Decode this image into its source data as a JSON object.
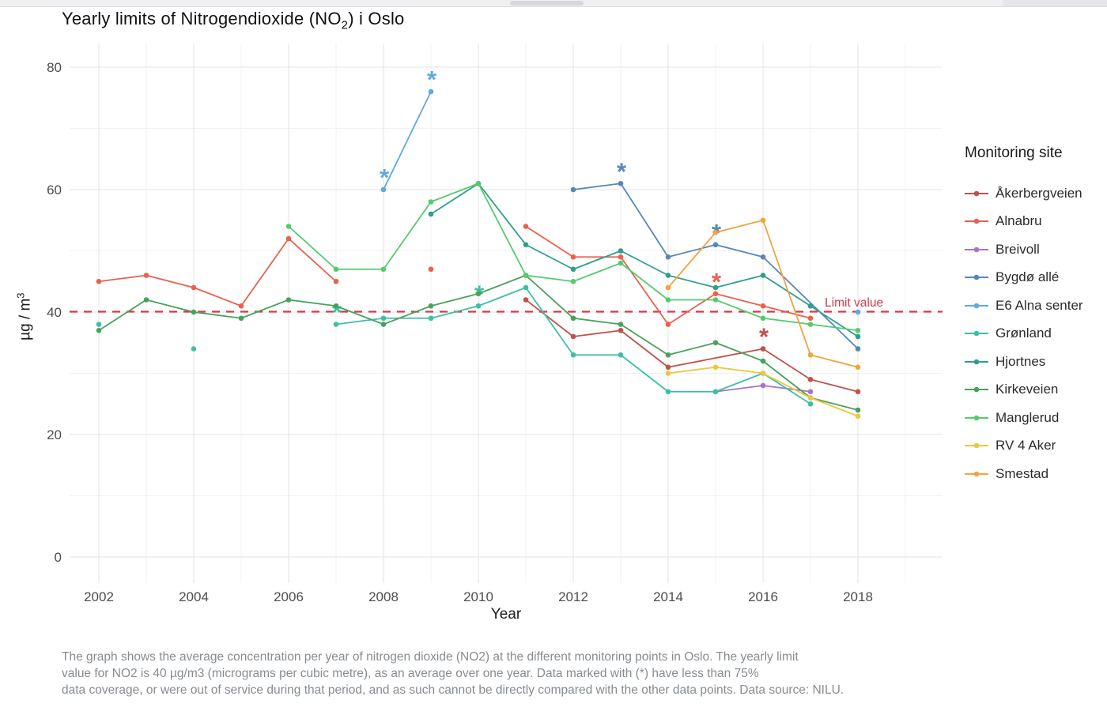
{
  "title": {
    "pre": "Yearly limits of Nitrogendioxide (NO",
    "sub": "2",
    "post": ") i Oslo"
  },
  "caption": {
    "lines": [
      "The graph shows the average concentration per year of nitrogen dioxide (NO2) at the different monitoring points in Oslo. The yearly limit",
      "value for NO2 is 40 µg/m3 (micrograms per cubic metre), as an average over one year. Data marked with (*) have less than 75%",
      "data coverage, or were out of service during that period, and as such cannot be directly compared with the other data points. Data source: NILU."
    ]
  },
  "scrollbar": {
    "present": true
  },
  "chart_data": {
    "type": "line",
    "title": "Yearly limits of Nitrogendioxide (NO2) i Oslo",
    "xlabel": "Year",
    "ylabel_main": "µg / m",
    "ylabel_sup": "3",
    "legend_title": "Monitoring site",
    "x_ticks": [
      2002,
      2004,
      2006,
      2008,
      2010,
      2012,
      2014,
      2016,
      2018
    ],
    "x_minor": [
      2003,
      2005,
      2007,
      2009,
      2011,
      2013,
      2015,
      2017,
      2019
    ],
    "y_ticks": [
      0,
      20,
      40,
      60,
      80
    ],
    "y_minor": [
      10,
      30,
      50,
      70
    ],
    "xlim": [
      2001.4,
      2019.8
    ],
    "ylim": [
      -4.3,
      84
    ],
    "grid": true,
    "legend_position": "right",
    "limit_line": {
      "value": 40,
      "label": "Limit value",
      "color": "#cf3b4c",
      "style": "dashed"
    },
    "asterisk_note": "* = less than 75% data coverage",
    "series": [
      {
        "name": "Åkerbergveien",
        "color": "#c0524c",
        "points": [
          {
            "year": 2011,
            "value": 42
          },
          {
            "year": 2012,
            "value": 36
          },
          {
            "year": 2013,
            "value": 37
          },
          {
            "year": 2014,
            "value": 31
          },
          {
            "year": 2016,
            "value": 34,
            "asterisk": true
          },
          {
            "year": 2017,
            "value": 29
          },
          {
            "year": 2018,
            "value": 27
          }
        ]
      },
      {
        "name": "Alnabru",
        "color": "#e9604f",
        "points": [
          {
            "year": 2002,
            "value": 45
          },
          {
            "year": 2003,
            "value": 46
          },
          {
            "year": 2004,
            "value": 44
          },
          {
            "year": 2005,
            "value": 41
          },
          {
            "year": 2006,
            "value": 52
          },
          {
            "year": 2007,
            "value": 45
          },
          {
            "year": 2009,
            "value": 47,
            "gap": true
          },
          {
            "year": 2011,
            "value": 54,
            "gap": true
          },
          {
            "year": 2012,
            "value": 49
          },
          {
            "year": 2013,
            "value": 49
          },
          {
            "year": 2014,
            "value": 38
          },
          {
            "year": 2015,
            "value": 43,
            "asterisk": true
          },
          {
            "year": 2016,
            "value": 41
          },
          {
            "year": 2017,
            "value": 39
          }
        ]
      },
      {
        "name": "Breivoll",
        "color": "#a873c9",
        "points": [
          {
            "year": 2015,
            "value": 27
          },
          {
            "year": 2016,
            "value": 28
          },
          {
            "year": 2017,
            "value": 27
          }
        ]
      },
      {
        "name": "Bygdø allé",
        "color": "#5587ba",
        "points": [
          {
            "year": 2012,
            "value": 60
          },
          {
            "year": 2013,
            "value": 61,
            "asterisk": true
          },
          {
            "year": 2014,
            "value": 49
          },
          {
            "year": 2015,
            "value": 51,
            "asterisk": true
          },
          {
            "year": 2016,
            "value": 49
          },
          {
            "year": 2018,
            "value": 34
          }
        ]
      },
      {
        "name": "E6 Alna senter",
        "color": "#5fa9df",
        "points": [
          {
            "year": 2008,
            "value": 60,
            "asterisk": true
          },
          {
            "year": 2009,
            "value": 76,
            "asterisk": true
          },
          {
            "year": 2018,
            "value": 40,
            "gap": true
          }
        ]
      },
      {
        "name": "Grønland",
        "color": "#3cc0a4",
        "points": [
          {
            "year": 2002,
            "value": 38
          },
          {
            "year": 2004,
            "value": 34,
            "gap": true
          },
          {
            "year": 2007,
            "value": 38,
            "gap": true,
            "asterisk": true
          },
          {
            "year": 2008,
            "value": 39
          },
          {
            "year": 2009,
            "value": 39
          },
          {
            "year": 2010,
            "value": 41,
            "asterisk": true
          },
          {
            "year": 2011,
            "value": 44
          },
          {
            "year": 2012,
            "value": 33
          },
          {
            "year": 2013,
            "value": 33
          },
          {
            "year": 2014,
            "value": 27
          },
          {
            "year": 2015,
            "value": 27
          },
          {
            "year": 2016,
            "value": 30
          },
          {
            "year": 2017,
            "value": 25
          }
        ]
      },
      {
        "name": "Hjortnes",
        "color": "#2f9e8f",
        "points": [
          {
            "year": 2009,
            "value": 56
          },
          {
            "year": 2010,
            "value": 61
          },
          {
            "year": 2011,
            "value": 51
          },
          {
            "year": 2012,
            "value": 47
          },
          {
            "year": 2013,
            "value": 50
          },
          {
            "year": 2014,
            "value": 46
          },
          {
            "year": 2015,
            "value": 44
          },
          {
            "year": 2016,
            "value": 46
          },
          {
            "year": 2017,
            "value": 41
          },
          {
            "year": 2018,
            "value": 36
          }
        ]
      },
      {
        "name": "Kirkeveien",
        "color": "#4aa15c",
        "points": [
          {
            "year": 2002,
            "value": 37
          },
          {
            "year": 2003,
            "value": 42
          },
          {
            "year": 2004,
            "value": 40
          },
          {
            "year": 2005,
            "value": 39
          },
          {
            "year": 2006,
            "value": 42
          },
          {
            "year": 2007,
            "value": 41
          },
          {
            "year": 2008,
            "value": 38
          },
          {
            "year": 2009,
            "value": 41
          },
          {
            "year": 2010,
            "value": 43
          },
          {
            "year": 2011,
            "value": 46
          },
          {
            "year": 2012,
            "value": 39
          },
          {
            "year": 2013,
            "value": 38
          },
          {
            "year": 2014,
            "value": 33
          },
          {
            "year": 2015,
            "value": 35
          },
          {
            "year": 2016,
            "value": 32
          },
          {
            "year": 2017,
            "value": 26
          },
          {
            "year": 2018,
            "value": 24
          }
        ]
      },
      {
        "name": "Manglerud",
        "color": "#55cb6e",
        "points": [
          {
            "year": 2006,
            "value": 54
          },
          {
            "year": 2007,
            "value": 47
          },
          {
            "year": 2008,
            "value": 47
          },
          {
            "year": 2009,
            "value": 58
          },
          {
            "year": 2010,
            "value": 61
          },
          {
            "year": 2011,
            "value": 46
          },
          {
            "year": 2012,
            "value": 45
          },
          {
            "year": 2013,
            "value": 48
          },
          {
            "year": 2014,
            "value": 42
          },
          {
            "year": 2015,
            "value": 42
          },
          {
            "year": 2016,
            "value": 39
          },
          {
            "year": 2017,
            "value": 38
          },
          {
            "year": 2018,
            "value": 37
          }
        ]
      },
      {
        "name": "RV 4 Aker",
        "color": "#eac73e",
        "points": [
          {
            "year": 2014,
            "value": 30
          },
          {
            "year": 2015,
            "value": 31
          },
          {
            "year": 2016,
            "value": 30
          },
          {
            "year": 2017,
            "value": 26
          },
          {
            "year": 2018,
            "value": 23
          }
        ]
      },
      {
        "name": "Smestad",
        "color": "#f0a43e",
        "points": [
          {
            "year": 2014,
            "value": 44
          },
          {
            "year": 2015,
            "value": 53
          },
          {
            "year": 2016,
            "value": 55
          },
          {
            "year": 2017,
            "value": 33
          },
          {
            "year": 2018,
            "value": 31
          }
        ]
      }
    ]
  }
}
